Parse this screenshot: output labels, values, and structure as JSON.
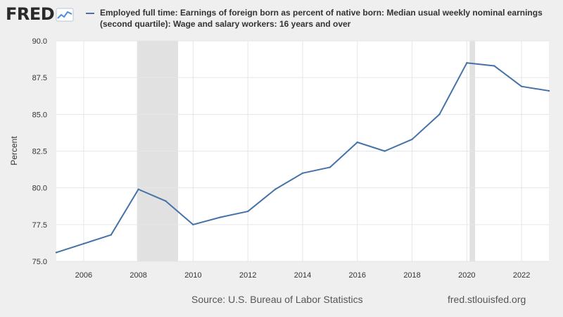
{
  "logo": {
    "text": "FRED",
    "mark": "fred-chart-mark"
  },
  "legend": {
    "label": "Employed full time: Earnings of foreign born as percent of native born: Median usual weekly nominal earnings (second quartile): Wage and salary workers: 16 years and over",
    "color": "#4572a7"
  },
  "footer": {
    "source": "Source: U.S. Bureau of Labor Statistics",
    "url": "fred.stlouisfed.org"
  },
  "chart_data": {
    "type": "line",
    "title": "Employed full time: Earnings of foreign born as percent of native born: Median usual weekly nominal earnings (second quartile): Wage and salary workers: 16 years and over",
    "xlabel": "",
    "ylabel": "Percent",
    "xlim": [
      2005,
      2023
    ],
    "ylim": [
      75.0,
      90.0
    ],
    "y_ticks": [
      "75.0",
      "77.5",
      "80.0",
      "82.5",
      "85.0",
      "87.5",
      "90.0"
    ],
    "x_ticks": [
      "2006",
      "2008",
      "2010",
      "2012",
      "2014",
      "2016",
      "2018",
      "2020",
      "2022"
    ],
    "grid": true,
    "recessions": [
      [
        2007.95,
        2009.45
      ],
      [
        2020.1,
        2020.3
      ]
    ],
    "series": [
      {
        "name": "Employed full time: Earnings of foreign born as percent of native born",
        "color": "#4572a7",
        "x": [
          2005,
          2006,
          2007,
          2008,
          2009,
          2010,
          2011,
          2012,
          2013,
          2014,
          2015,
          2016,
          2017,
          2018,
          2019,
          2020,
          2021,
          2022,
          2023
        ],
        "values": [
          75.6,
          76.2,
          76.8,
          79.9,
          79.1,
          77.5,
          78.0,
          78.4,
          79.9,
          81.0,
          81.4,
          83.1,
          82.5,
          83.3,
          85.0,
          88.5,
          88.3,
          86.9,
          86.6
        ]
      }
    ]
  }
}
